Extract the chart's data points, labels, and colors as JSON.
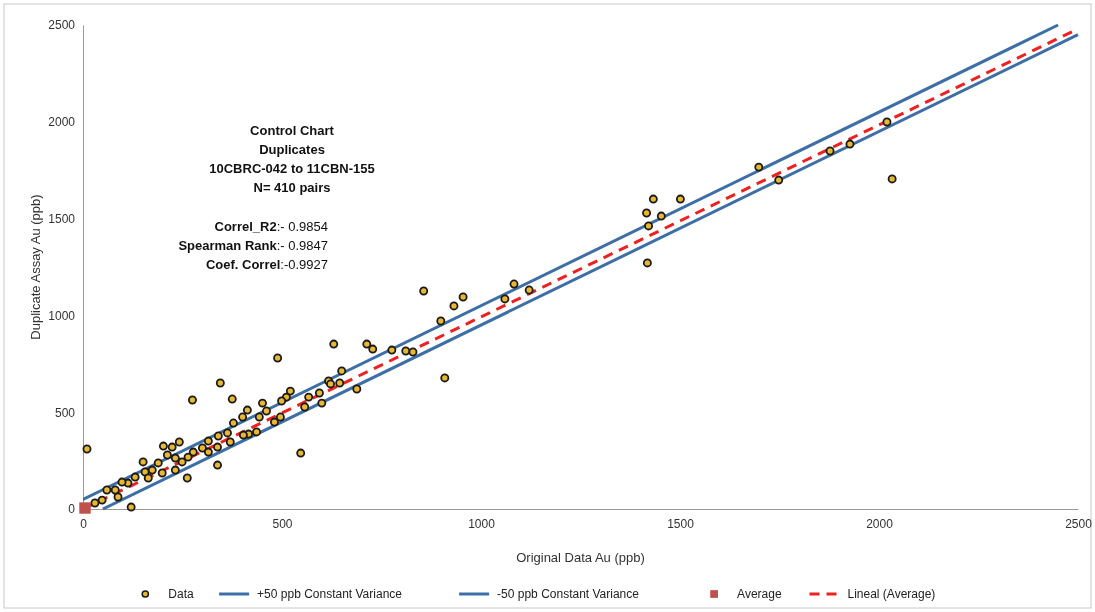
{
  "chart_data": {
    "type": "scatter",
    "title": "Control Chart",
    "subtitle": "Duplicates",
    "xlabel": "Original Data Au (ppb)",
    "ylabel": "Duplicate Assay Au (ppb)",
    "annotations": [
      "10CBRC-042  to  11CBN-155",
      "N= 410 pairs",
      "Correl_R2:- 0.9854",
      "Spearman Rank:- 0.9847",
      "Coef. Correl:-0.9927"
    ],
    "xlim": [
      0,
      2500
    ],
    "ylim": [
      0,
      2500
    ],
    "xticks": [
      0,
      500,
      1000,
      1500,
      2000,
      2500
    ],
    "yticks": [
      0,
      500,
      1000,
      1500,
      2000,
      2500
    ],
    "grid": false,
    "legend": "bottom",
    "series": [
      {
        "name": "Data",
        "marker": "circle",
        "color": "#e8b830",
        "x": [
          2020,
          2033,
          1927,
          1877,
          1748,
          1698,
          1501,
          1433,
          1453,
          1416,
          1421,
          1418,
          1083,
          1060,
          1121,
          955,
          932,
          856,
          899,
          909,
          630,
          713,
          728,
          776,
          811,
          829,
          650,
          617,
          622,
          645,
          688,
          567,
          557,
          594,
          600,
          547,
          10,
          121,
          489,
          345,
          275,
          375,
          338,
          262,
          202,
          242,
          224,
          151,
          521,
          511,
          499,
          481,
          496,
          451,
          461,
          413,
          378,
          401,
          443,
          416,
          436,
          340,
          363,
          370,
          315,
          300,
          277,
          264,
          249,
          232,
          212,
          189,
          174,
          156,
          131,
          113,
          98,
          81,
          60,
          48,
          30,
          315,
          199,
          232,
          164,
          88,
          338,
          403
        ],
        "values": [
          1999,
          1705,
          1885,
          1849,
          1699,
          1766,
          1601,
          1601,
          1513,
          1529,
          1462,
          1271,
          1162,
          1085,
          1131,
          1095,
          1049,
          1126,
          971,
          677,
          852,
          852,
          826,
          821,
          816,
          811,
          713,
          661,
          646,
          651,
          620,
          578,
          527,
          599,
          547,
          289,
          310,
          10,
          780,
          651,
          563,
          568,
          227,
          160,
          325,
          346,
          320,
          243,
          609,
          578,
          558,
          449,
          475,
          547,
          506,
          511,
          444,
          475,
          475,
          387,
          398,
          377,
          393,
          346,
          351,
          315,
          294,
          268,
          243,
          201,
          279,
          238,
          201,
          191,
          165,
          134,
          139,
          98,
          98,
          46,
          31,
          294,
          186,
          263,
          160,
          62,
          320,
          382
        ]
      },
      {
        "name": "+50 ppb Constant Variance",
        "type": "line",
        "line_style": "solid",
        "color": "#3d6ea5",
        "x": [
          0,
          2450
        ],
        "values": [
          50,
          2500
        ]
      },
      {
        "name": "-50 ppb Constant Variance",
        "type": "line",
        "line_style": "solid",
        "color": "#3d6ea5",
        "x": [
          50,
          2500
        ],
        "values": [
          0,
          2450
        ]
      },
      {
        "name": "Average",
        "marker": "square",
        "color": "#c0504d",
        "x": [
          5
        ],
        "values": [
          5
        ]
      },
      {
        "name": "Lineal (Average)",
        "type": "line",
        "line_style": "dashed",
        "color": "#ee2020",
        "x": [
          0,
          2500
        ],
        "values": [
          0,
          2480
        ]
      }
    ]
  }
}
